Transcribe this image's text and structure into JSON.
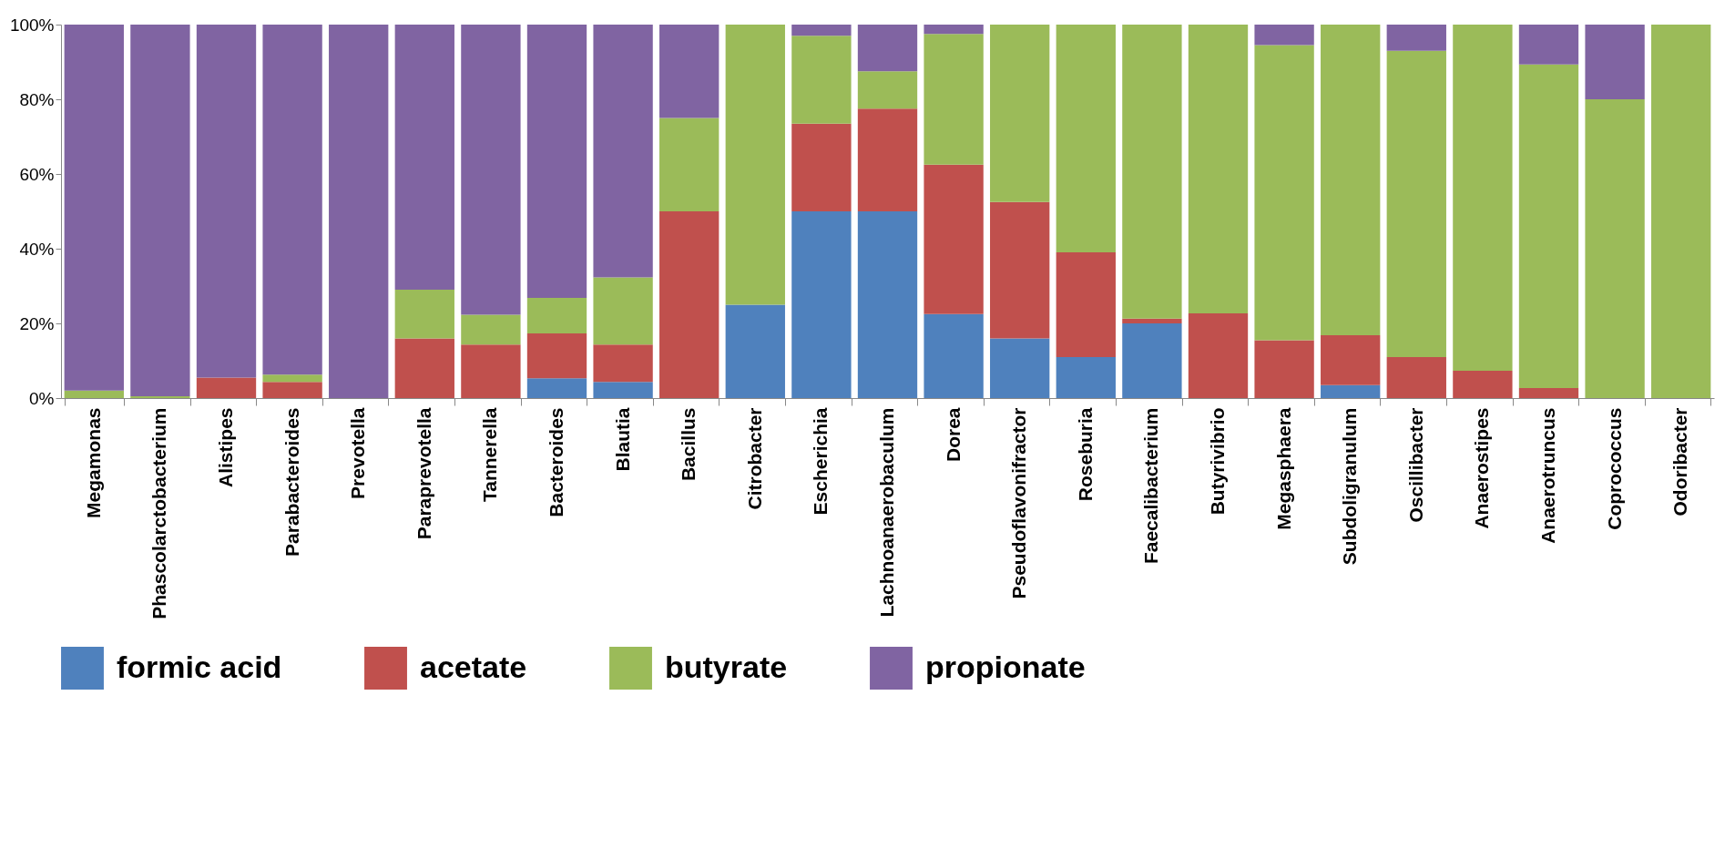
{
  "chart_data": {
    "type": "bar",
    "stacked": true,
    "categories": [
      "Megamonas",
      "Phascolarctobacterium",
      "Alistipes",
      "Parabacteroides",
      "Prevotella",
      "Paraprevotella",
      "Tannerella",
      "Bacteroides",
      "Blautia",
      "Bacillus",
      "Citrobacter",
      "Escherichia",
      "Lachnoanaerobaculum",
      "Dorea",
      "Pseudoflavonifractor",
      "Roseburia",
      "Faecalibacterium",
      "Butyrivibrio",
      "Megasphaera",
      "Subdoligranulum",
      "Oscillibacter",
      "Anaerostipes",
      "Anaerotruncus",
      "Coprococcus",
      "Odoribacter"
    ],
    "series": [
      {
        "name": "formic acid",
        "color": "#4f81bd",
        "values": [
          null,
          null,
          null,
          null,
          null,
          null,
          null,
          5.3,
          4.3,
          null,
          25,
          50,
          50,
          22.5,
          16,
          11,
          20,
          null,
          null,
          3.5,
          null,
          null,
          null,
          null,
          null
        ]
      },
      {
        "name": "acetate",
        "color": "#c0504d",
        "values": [
          null,
          null,
          5.5,
          4.3,
          null,
          16,
          14.3,
          12,
          10,
          50,
          null,
          23.5,
          27.5,
          40,
          36.5,
          28,
          1.3,
          22.7,
          15.5,
          13.3,
          11,
          7.3,
          2.7,
          null,
          null
        ]
      },
      {
        "name": "butyrate",
        "color": "#9bbb59",
        "values": [
          2,
          0.5,
          null,
          2,
          null,
          13,
          8,
          9.5,
          18,
          25,
          75,
          23.5,
          10,
          35,
          47.5,
          61,
          78.7,
          77.3,
          79,
          83.2,
          82,
          92.7,
          86.6,
          80,
          100
        ]
      },
      {
        "name": "propionate",
        "color": "#8064a2",
        "values": [
          98,
          99.5,
          94.5,
          93.7,
          100,
          71,
          77.7,
          73.2,
          67.7,
          25,
          null,
          3,
          12.5,
          2.5,
          null,
          null,
          null,
          null,
          5.5,
          null,
          7,
          null,
          10.7,
          20,
          null
        ]
      }
    ],
    "ylim": [
      0,
      100
    ],
    "yticks": [
      {
        "value": 0,
        "label": "0%"
      },
      {
        "value": 20,
        "label": "20%"
      },
      {
        "value": 40,
        "label": "40%"
      },
      {
        "value": 60,
        "label": "60%"
      },
      {
        "value": 80,
        "label": "80%"
      },
      {
        "value": 100,
        "label": "100%"
      }
    ],
    "grid": false,
    "legend": "bottom"
  }
}
